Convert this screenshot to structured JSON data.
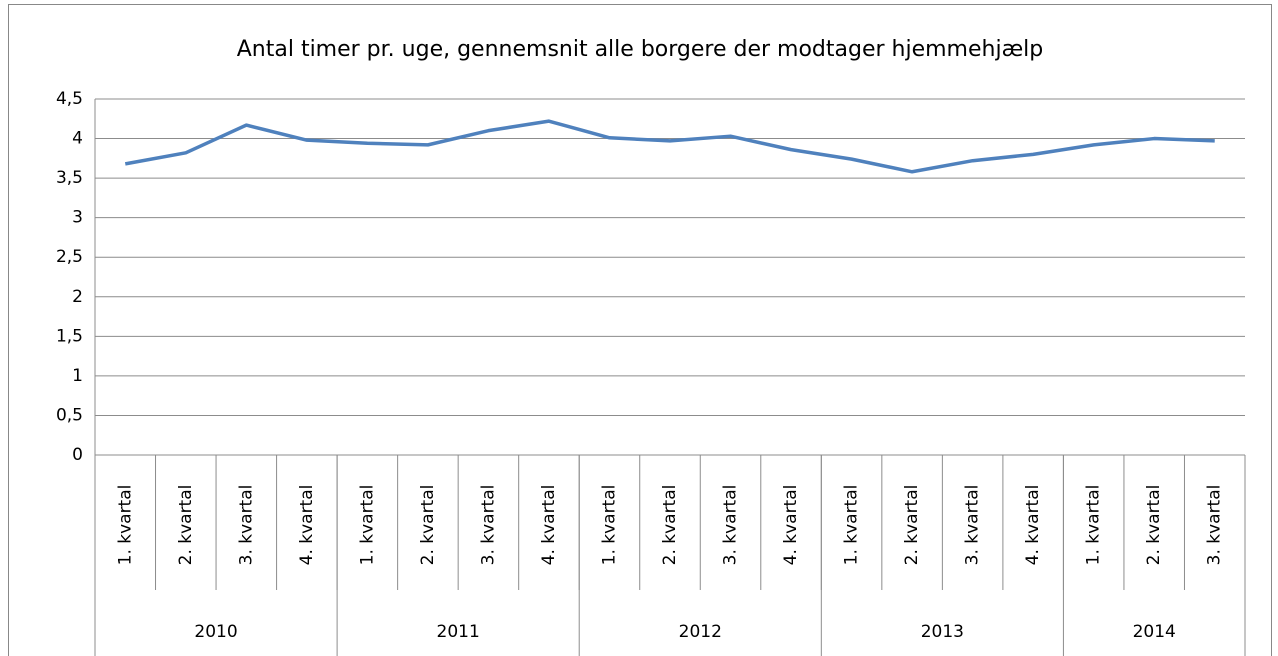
{
  "chart_data": {
    "type": "line",
    "title": "Antal timer pr. uge, gennemsnit alle borgere der modtager hjemmehjælp",
    "categories": [
      "1. kvartal",
      "2. kvartal",
      "3. kvartal",
      "4. kvartal",
      "1. kvartal",
      "2. kvartal",
      "3. kvartal",
      "4. kvartal",
      "1. kvartal",
      "2. kvartal",
      "3. kvartal",
      "4. kvartal",
      "1. kvartal",
      "2. kvartal",
      "3. kvartal",
      "4. kvartal",
      "1. kvartal",
      "2. kvartal",
      "3. kvartal"
    ],
    "groups": [
      {
        "label": "2010",
        "count": 4
      },
      {
        "label": "2011",
        "count": 4
      },
      {
        "label": "2012",
        "count": 4
      },
      {
        "label": "2013",
        "count": 4
      },
      {
        "label": "2014",
        "count": 3
      }
    ],
    "series": [
      {
        "color": "#4f81bd",
        "values": [
          3.68,
          3.82,
          4.17,
          3.98,
          3.94,
          3.92,
          4.1,
          4.22,
          4.01,
          3.97,
          4.03,
          3.86,
          3.74,
          3.58,
          3.72,
          3.8,
          3.92,
          4.0,
          3.97
        ]
      }
    ],
    "ylim": [
      0,
      4.5
    ],
    "yticks": [
      0,
      {
        "value": 0.5,
        "label": "0,5"
      },
      1,
      {
        "value": 1.5,
        "label": "1,5"
      },
      2,
      {
        "value": 2.5,
        "label": "2,5"
      },
      3,
      {
        "value": 3.5,
        "label": "3,5"
      },
      4,
      {
        "value": 4.5,
        "label": "4,5"
      }
    ],
    "grid": true
  }
}
